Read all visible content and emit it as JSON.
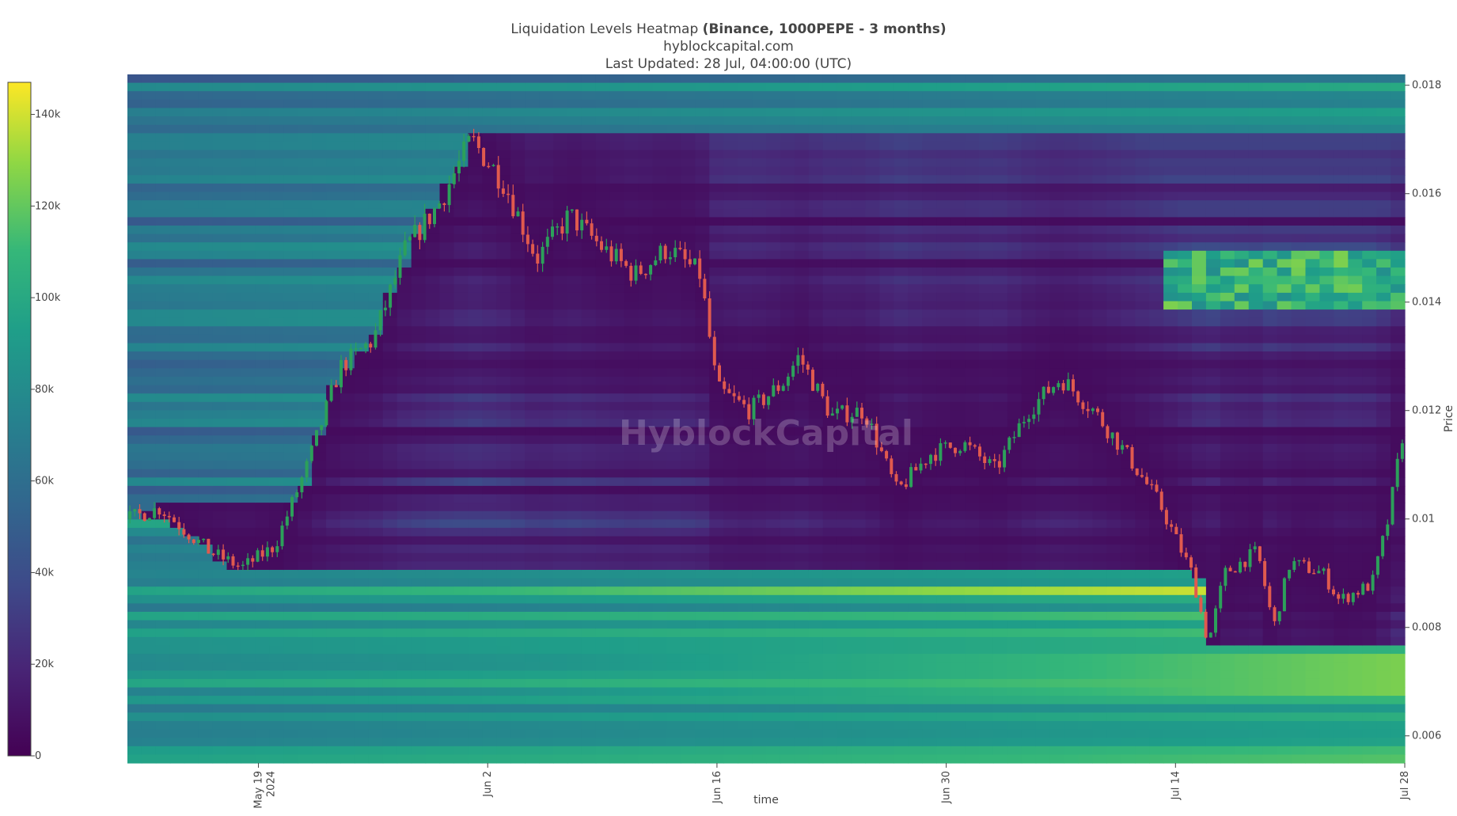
{
  "title": {
    "prefix": "Liquidation Levels Heatmap ",
    "bold": "(Binance, 1000PEPE - 3 months)",
    "line2": "hyblockcapital.com",
    "line3": "Last Updated: 28 Jul, 04:00:00 (UTC)"
  },
  "watermark": "HyblockCapital",
  "colors": {
    "viridis_low": "#440154",
    "viridis_mid": "#21918c",
    "viridis_high": "#fde725",
    "candle_up": "#2ca05a",
    "candle_down": "#e05a4e"
  },
  "chart_data": {
    "type": "heatmap",
    "subtype": "liquidation heatmap with price candlestick overlay",
    "xlabel": "time",
    "ylabel": "Price",
    "x_ticks": [
      {
        "label": "May 19",
        "sublabel": "2024"
      },
      {
        "label": "Jun 2",
        "sublabel": ""
      },
      {
        "label": "Jun 16",
        "sublabel": ""
      },
      {
        "label": "Jun 30",
        "sublabel": ""
      },
      {
        "label": "Jul 14",
        "sublabel": ""
      },
      {
        "label": "Jul 28",
        "sublabel": ""
      }
    ],
    "y_ticks": [
      "0.006",
      "0.008",
      "0.01",
      "0.012",
      "0.014",
      "0.016",
      "0.018"
    ],
    "colorbar": {
      "ticks": [
        "0",
        "20k",
        "40k",
        "60k",
        "80k",
        "100k",
        "120k",
        "140k"
      ],
      "range": [
        0,
        147000
      ]
    },
    "x_range": [
      "2024-05-11",
      "2024-07-28"
    ],
    "ylim": [
      0.0055,
      0.0182
    ],
    "approx_price_path": [
      [
        "2024-05-11",
        0.01
      ],
      [
        "2024-05-13",
        0.0102
      ],
      [
        "2024-05-16",
        0.0094
      ],
      [
        "2024-05-18",
        0.0091
      ],
      [
        "2024-05-20",
        0.0095
      ],
      [
        "2024-05-22",
        0.011
      ],
      [
        "2024-05-24",
        0.0128
      ],
      [
        "2024-05-26",
        0.0133
      ],
      [
        "2024-05-28",
        0.015
      ],
      [
        "2024-05-30",
        0.0158
      ],
      [
        "2024-06-01",
        0.017
      ],
      [
        "2024-06-03",
        0.0162
      ],
      [
        "2024-06-05",
        0.0148
      ],
      [
        "2024-06-07",
        0.0156
      ],
      [
        "2024-06-09",
        0.015
      ],
      [
        "2024-06-11",
        0.0145
      ],
      [
        "2024-06-13",
        0.015
      ],
      [
        "2024-06-15",
        0.0145
      ],
      [
        "2024-06-16",
        0.0124
      ],
      [
        "2024-06-18",
        0.012
      ],
      [
        "2024-06-20",
        0.0125
      ],
      [
        "2024-06-21",
        0.013
      ],
      [
        "2024-06-23",
        0.0119
      ],
      [
        "2024-06-25",
        0.012
      ],
      [
        "2024-06-27",
        0.0105
      ],
      [
        "2024-06-29",
        0.0112
      ],
      [
        "2024-07-01",
        0.0114
      ],
      [
        "2024-07-03",
        0.0109
      ],
      [
        "2024-07-05",
        0.012
      ],
      [
        "2024-07-07",
        0.0126
      ],
      [
        "2024-07-09",
        0.012
      ],
      [
        "2024-07-11",
        0.0112
      ],
      [
        "2024-07-13",
        0.0103
      ],
      [
        "2024-07-15",
        0.009
      ],
      [
        "2024-07-16",
        0.0077
      ],
      [
        "2024-07-17",
        0.009
      ],
      [
        "2024-07-19",
        0.0094
      ],
      [
        "2024-07-20",
        0.008
      ],
      [
        "2024-07-21",
        0.0092
      ],
      [
        "2024-07-23",
        0.009
      ],
      [
        "2024-07-24",
        0.0085
      ],
      [
        "2024-07-26",
        0.0088
      ],
      [
        "2024-07-27",
        0.01
      ],
      [
        "2024-07-28",
        0.0118
      ]
    ]
  }
}
